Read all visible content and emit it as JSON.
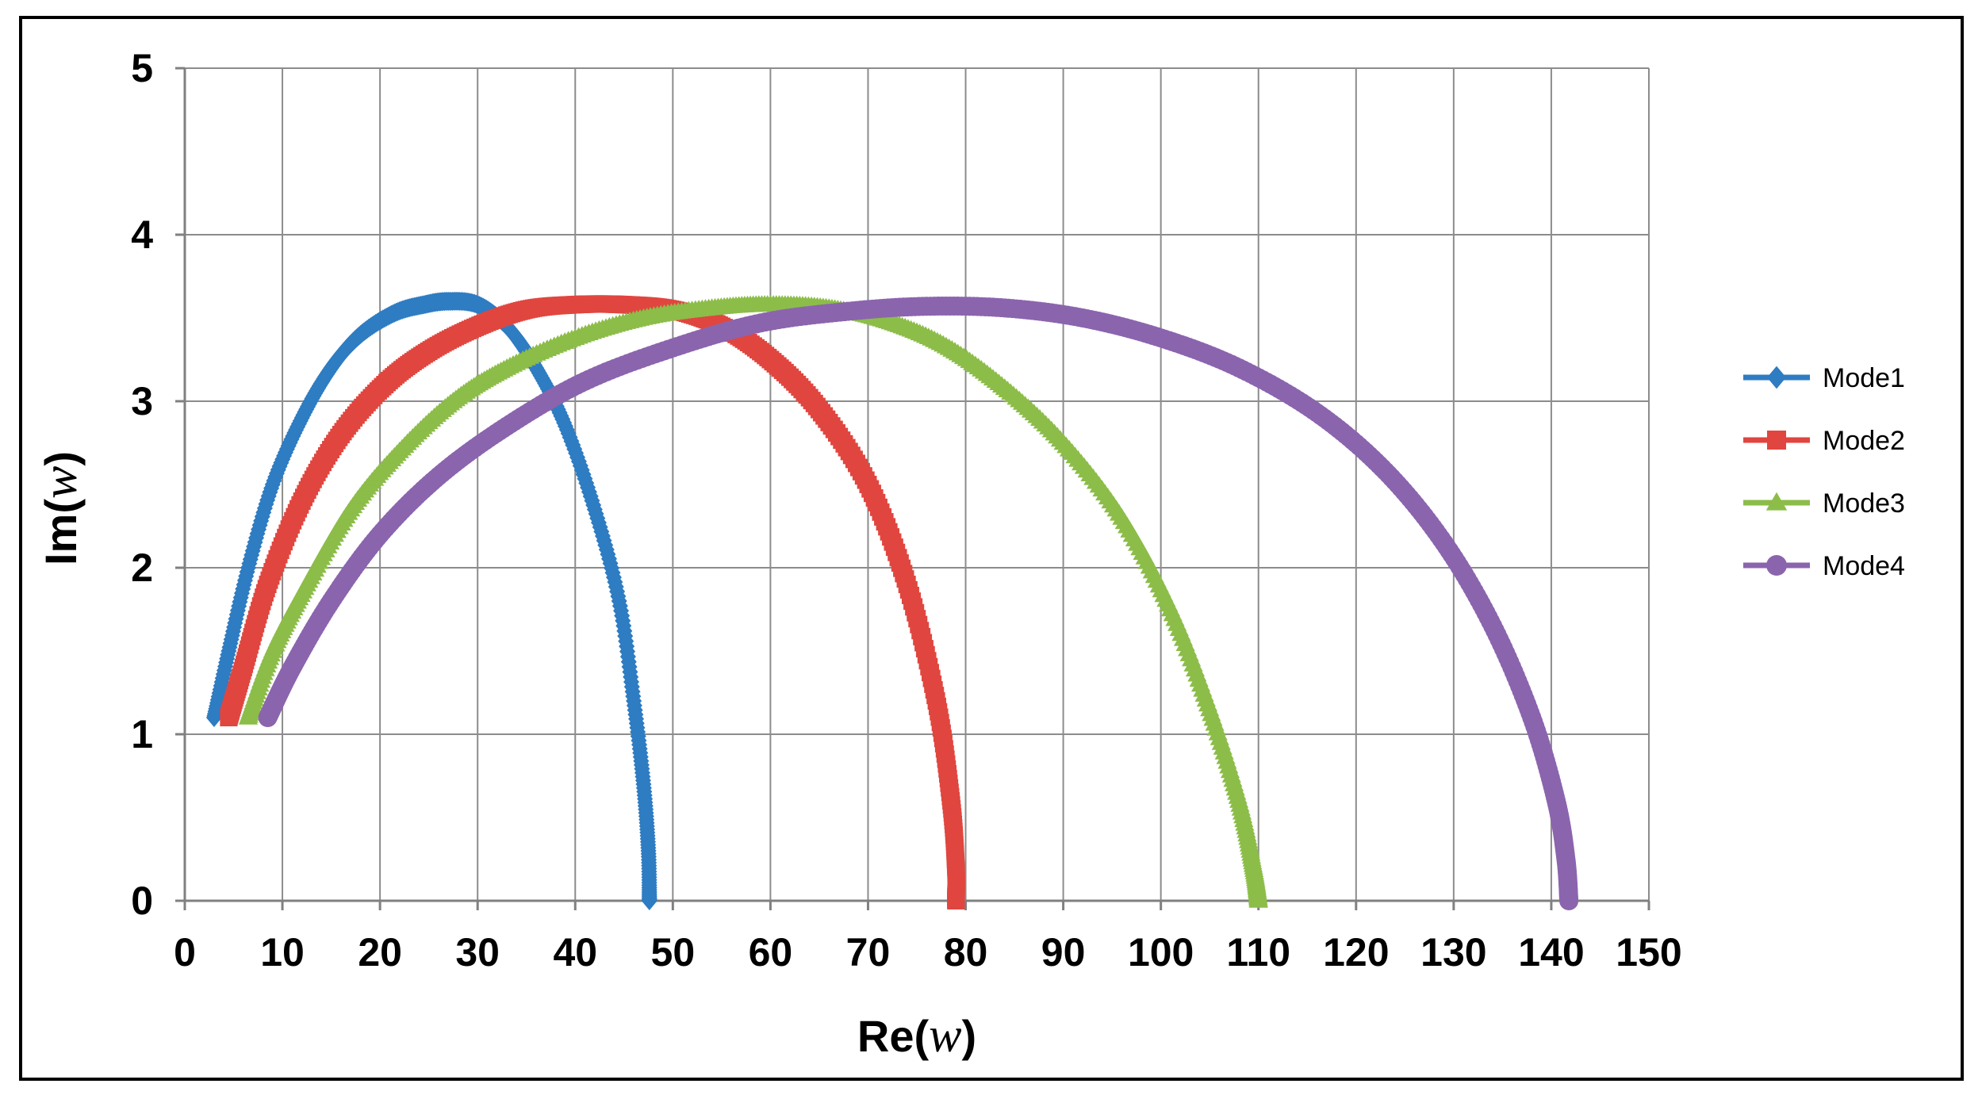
{
  "chart_data": {
    "type": "scatter",
    "title": "",
    "xlabel": {
      "prefix": "Re(",
      "var": "w",
      "suffix": ")"
    },
    "ylabel": {
      "prefix": "Im(",
      "var": "w",
      "suffix": ")"
    },
    "xlim": [
      0,
      150
    ],
    "ylim": [
      0,
      5
    ],
    "x_ticks": [
      0,
      10,
      20,
      30,
      40,
      50,
      60,
      70,
      80,
      90,
      100,
      110,
      120,
      130,
      140,
      150
    ],
    "y_ticks": [
      0,
      1,
      2,
      3,
      4,
      5
    ],
    "grid": true,
    "legend_position": "right",
    "series": [
      {
        "name": "Mode1",
        "color": "#2E7CC2",
        "marker": "diamond",
        "points": [
          [
            3.0,
            1.1
          ],
          [
            4.5,
            1.5
          ],
          [
            6.5,
            2.0
          ],
          [
            9.0,
            2.5
          ],
          [
            12.0,
            2.9
          ],
          [
            15.0,
            3.2
          ],
          [
            18.0,
            3.4
          ],
          [
            21.5,
            3.53
          ],
          [
            24.5,
            3.58
          ],
          [
            27.0,
            3.6
          ],
          [
            30.0,
            3.58
          ],
          [
            33.0,
            3.45
          ],
          [
            36.0,
            3.2
          ],
          [
            39.0,
            2.85
          ],
          [
            42.0,
            2.35
          ],
          [
            44.5,
            1.8
          ],
          [
            46.0,
            1.2
          ],
          [
            47.0,
            0.7
          ],
          [
            47.5,
            0.3
          ],
          [
            47.6,
            0.0
          ]
        ]
      },
      {
        "name": "Mode2",
        "color": "#E0463F",
        "marker": "square",
        "points": [
          [
            4.5,
            1.1
          ],
          [
            6.0,
            1.4
          ],
          [
            8.5,
            1.9
          ],
          [
            12.0,
            2.4
          ],
          [
            16.0,
            2.8
          ],
          [
            20.5,
            3.1
          ],
          [
            25.0,
            3.3
          ],
          [
            30.0,
            3.45
          ],
          [
            35.0,
            3.55
          ],
          [
            40.0,
            3.58
          ],
          [
            45.0,
            3.58
          ],
          [
            50.0,
            3.55
          ],
          [
            55.0,
            3.45
          ],
          [
            60.0,
            3.25
          ],
          [
            65.0,
            2.95
          ],
          [
            70.0,
            2.5
          ],
          [
            74.0,
            1.9
          ],
          [
            77.0,
            1.2
          ],
          [
            78.5,
            0.6
          ],
          [
            79.0,
            0.2
          ],
          [
            79.0,
            0.0
          ]
        ]
      },
      {
        "name": "Mode3",
        "color": "#8CBD49",
        "marker": "triangle",
        "points": [
          [
            6.5,
            1.1
          ],
          [
            9.0,
            1.5
          ],
          [
            12.5,
            1.9
          ],
          [
            17.0,
            2.35
          ],
          [
            22.0,
            2.7
          ],
          [
            27.5,
            3.0
          ],
          [
            33.0,
            3.2
          ],
          [
            40.0,
            3.38
          ],
          [
            47.0,
            3.5
          ],
          [
            54.0,
            3.56
          ],
          [
            60.0,
            3.58
          ],
          [
            66.0,
            3.56
          ],
          [
            72.0,
            3.48
          ],
          [
            78.0,
            3.33
          ],
          [
            84.0,
            3.08
          ],
          [
            90.0,
            2.75
          ],
          [
            96.0,
            2.3
          ],
          [
            101.0,
            1.75
          ],
          [
            105.0,
            1.15
          ],
          [
            108.0,
            0.6
          ],
          [
            109.5,
            0.2
          ],
          [
            110.0,
            0.0
          ]
        ]
      },
      {
        "name": "Mode4",
        "color": "#8B64AE",
        "marker": "circle",
        "points": [
          [
            8.5,
            1.1
          ],
          [
            11.0,
            1.4
          ],
          [
            15.0,
            1.8
          ],
          [
            20.0,
            2.2
          ],
          [
            26.0,
            2.55
          ],
          [
            33.0,
            2.85
          ],
          [
            41.0,
            3.12
          ],
          [
            50.0,
            3.32
          ],
          [
            59.0,
            3.47
          ],
          [
            68.0,
            3.54
          ],
          [
            76.0,
            3.57
          ],
          [
            84.0,
            3.56
          ],
          [
            92.0,
            3.5
          ],
          [
            100.0,
            3.38
          ],
          [
            108.0,
            3.2
          ],
          [
            116.0,
            2.93
          ],
          [
            123.0,
            2.58
          ],
          [
            129.0,
            2.15
          ],
          [
            134.0,
            1.65
          ],
          [
            138.0,
            1.1
          ],
          [
            140.5,
            0.6
          ],
          [
            141.5,
            0.25
          ],
          [
            141.8,
            0.0
          ]
        ]
      }
    ]
  }
}
